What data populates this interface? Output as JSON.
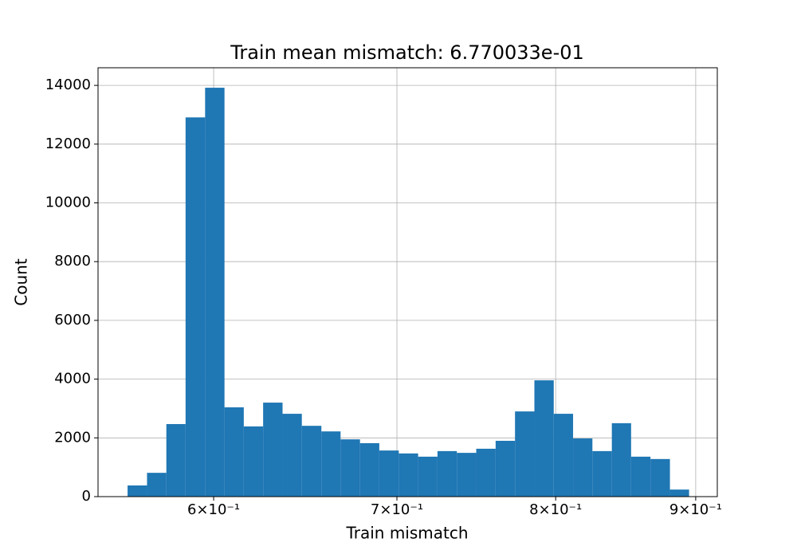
{
  "chart_data": {
    "type": "histogram",
    "title": "Train mean mismatch: 6.770033e-01",
    "x_label": "Train mismatch",
    "y_label": "Count",
    "color": "#1f77b4",
    "x_scale": "log",
    "grid": true,
    "bins": [
      0.5581,
      0.5673,
      0.5766,
      0.586,
      0.5957,
      0.6055,
      0.6154,
      0.6255,
      0.6358,
      0.6462,
      0.6569,
      0.6676,
      0.6786,
      0.6897,
      0.7011,
      0.7126,
      0.7243,
      0.7362,
      0.7483,
      0.7606,
      0.7731,
      0.7858,
      0.7987,
      0.8118,
      0.8251,
      0.8387,
      0.8524,
      0.8664,
      0.8807,
      0.895
    ],
    "values": [
      380,
      810,
      2470,
      12910,
      13920,
      3040,
      2390,
      3200,
      2820,
      2410,
      2220,
      1950,
      1820,
      1570,
      1470,
      1360,
      1550,
      1490,
      1630,
      1900,
      2900,
      3960,
      2820,
      1980,
      1550,
      2500,
      1360,
      1280,
      240
    ],
    "xlim": [
      0.5444,
      0.9165
    ],
    "ylim": [
      0,
      14600
    ],
    "xticks": [
      {
        "value": 0.6,
        "label": "6×10⁻¹"
      },
      {
        "value": 0.7,
        "label": "7×10⁻¹"
      },
      {
        "value": 0.8,
        "label": "8×10⁻¹"
      },
      {
        "value": 0.9,
        "label": "9×10⁻¹"
      }
    ],
    "yticks": [
      0,
      2000,
      4000,
      6000,
      8000,
      10000,
      12000,
      14000
    ]
  }
}
